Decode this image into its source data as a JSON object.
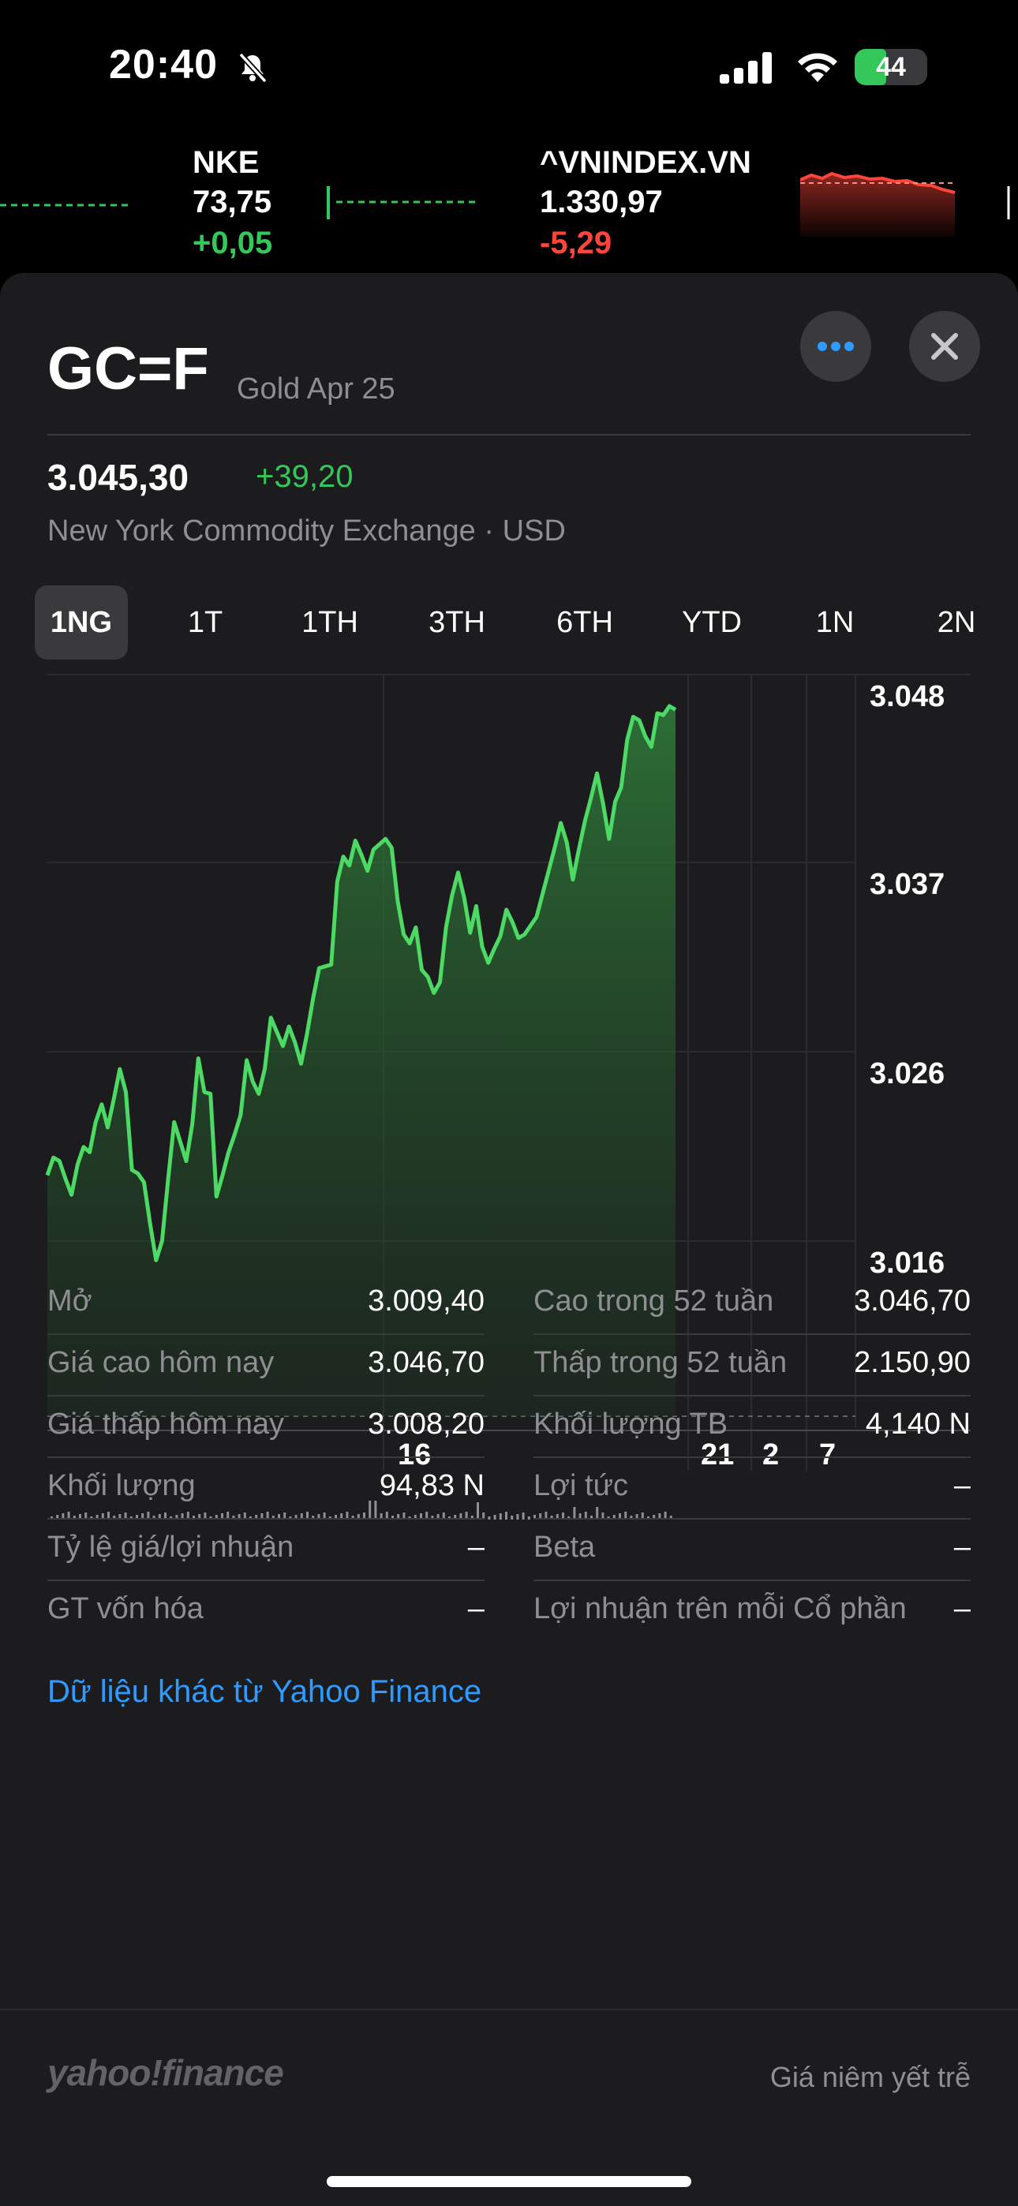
{
  "status_bar": {
    "time": "20:40",
    "battery": "44",
    "battery_level": 0.44
  },
  "ticker": [
    {
      "symbol": "NKE",
      "price": "73,75",
      "change": "+0,05",
      "direction": "up"
    },
    {
      "symbol": "^VNINDEX.VN",
      "price": "1.330,97",
      "change": "-5,29",
      "direction": "down"
    }
  ],
  "header": {
    "symbol": "GC=F",
    "name": "Gold Apr 25",
    "price": "3.045,30",
    "change": "+39,20",
    "exchange": "New York Commodity Exchange · USD"
  },
  "ranges": [
    {
      "label": "1NG",
      "active": true
    },
    {
      "label": "1T",
      "active": false
    },
    {
      "label": "1TH",
      "active": false
    },
    {
      "label": "3TH",
      "active": false
    },
    {
      "label": "6TH",
      "active": false
    },
    {
      "label": "YTD",
      "active": false
    },
    {
      "label": "1N",
      "active": false
    },
    {
      "label": "2N",
      "active": false
    }
  ],
  "chart_data": {
    "type": "area",
    "y_ticks": [
      "3.048",
      "3.037",
      "3.026",
      "3.016"
    ],
    "x_ticks": [
      "16",
      "21",
      "2",
      "7"
    ],
    "ylim": [
      3005,
      3050
    ],
    "values": [
      3021.5,
      3022.5,
      3022.3,
      3021.3,
      3020.4,
      3022.1,
      3023.1,
      3022.8,
      3024.5,
      3025.5,
      3024.2,
      3025.8,
      3027.5,
      3026.2,
      3021.8,
      3021.6,
      3021.1,
      3018.8,
      3016.7,
      3017.8,
      3021.3,
      3024.5,
      3023.4,
      3022.3,
      3024.4,
      3028.1,
      3026.2,
      3026.1,
      3020.3,
      3021.5,
      3022.8,
      3023.8,
      3024.9,
      3028.0,
      3026.8,
      3026.1,
      3027.5,
      3030.4,
      3029.6,
      3028.8,
      3029.9,
      3029.0,
      3027.8,
      3029.5,
      3031.5,
      3033.2,
      3033.3,
      3033.4,
      3038.1,
      3039.5,
      3039.0,
      3040.4,
      3039.6,
      3038.7,
      3039.9,
      3040.2,
      3040.5,
      3040.0,
      3037.0,
      3035.1,
      3034.6,
      3035.5,
      3033.1,
      3032.7,
      3031.8,
      3032.4,
      3035.5,
      3037.3,
      3038.6,
      3037.2,
      3035.2,
      3036.7,
      3034.4,
      3033.5,
      3034.3,
      3035.0,
      3036.5,
      3035.8,
      3034.9,
      3035.1,
      3035.6,
      3036.1,
      3037.4,
      3038.7,
      3040.0,
      3041.4,
      3040.3,
      3038.2,
      3039.9,
      3041.5,
      3042.8,
      3044.2,
      3042.5,
      3040.5,
      3042.6,
      3043.4,
      3046.1,
      3047.4,
      3047.2,
      3046.3,
      3045.7,
      3047.6,
      3047.5,
      3048.0,
      3047.8
    ],
    "grid": true
  },
  "stats_left": [
    {
      "key": "Mở",
      "value": "3.009,40"
    },
    {
      "key": "Giá cao hôm nay",
      "value": "3.046,70"
    },
    {
      "key": "Giá thấp hôm nay",
      "value": "3.008,20"
    },
    {
      "key": "Khối lượng",
      "value": "94,83 N"
    },
    {
      "key": "Tỷ lệ giá/lợi nhuận",
      "value": "–"
    },
    {
      "key": "GT vốn hóa",
      "value": "–"
    }
  ],
  "stats_right": [
    {
      "key": "Cao trong 52 tuần",
      "value": "3.046,70"
    },
    {
      "key": "Thấp trong 52 tuần",
      "value": "2.150,90"
    },
    {
      "key": "Khối lượng TB",
      "value": "4,140 N"
    },
    {
      "key": "Lợi tức",
      "value": "–"
    },
    {
      "key": "Beta",
      "value": "–"
    },
    {
      "key": "Lợi nhuận trên mỗi Cổ phần",
      "value": "–"
    }
  ],
  "more_link": "Dữ liệu khác từ Yahoo Finance",
  "footer": {
    "brand": "yahoo!finance",
    "delay_note": "Giá niêm yết trễ"
  },
  "colors": {
    "up": "#34c759",
    "down": "#ff453a",
    "link": "#2f9bff"
  }
}
